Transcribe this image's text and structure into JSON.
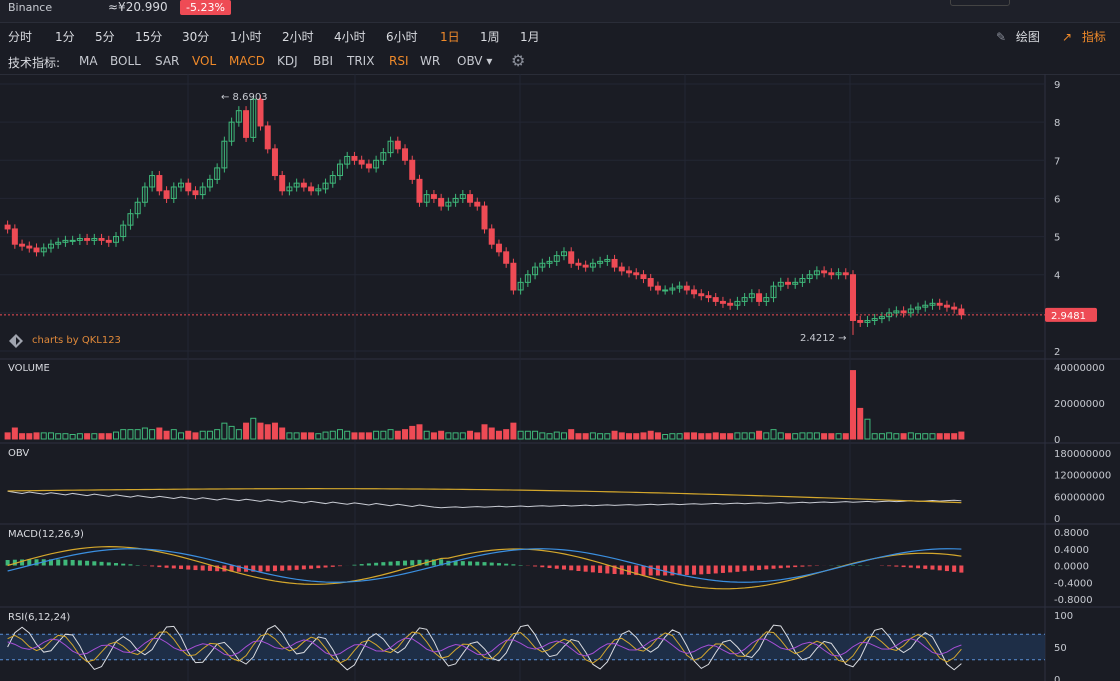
{
  "header": {
    "exchange": "Binance",
    "price": "≈¥20.990",
    "change": "-5.23%"
  },
  "timeframes": [
    "分时",
    "1分",
    "5分",
    "15分",
    "30分",
    "1小时",
    "2小时",
    "4小时",
    "6小时",
    "1日",
    "1周",
    "1月"
  ],
  "active_timeframe": "1日",
  "tools": {
    "draw": "绘图",
    "indicators": "指标"
  },
  "indicator_bar": {
    "label": "技术指标:",
    "items": [
      "MA",
      "BOLL",
      "SAR",
      "VOL",
      "MACD",
      "KDJ",
      "BBI",
      "TRIX",
      "RSI",
      "WR",
      "OBV ▾"
    ],
    "active": [
      "VOL",
      "MACD",
      "RSI"
    ]
  },
  "watermark": "charts by QKL123",
  "colors": {
    "up": "#3fb87a",
    "down": "#ee4b55",
    "accent": "#f08a2a",
    "bg": "#1a1c24"
  },
  "chart_data": [
    {
      "type": "candlestick",
      "title": "",
      "ylim": [
        2,
        9
      ],
      "yticks": [
        "9",
        "8",
        "7",
        "6",
        "5",
        "4",
        "3",
        "2"
      ],
      "last_price_label": "2.9481",
      "max_annotation": "8.6903",
      "min_annotation": "2.4212",
      "close_series": [
        5.2,
        4.8,
        4.75,
        4.7,
        4.6,
        4.7,
        4.8,
        4.85,
        4.9,
        4.9,
        4.95,
        4.9,
        4.95,
        4.9,
        4.85,
        5.0,
        5.3,
        5.6,
        5.9,
        6.3,
        6.6,
        6.2,
        6.0,
        6.3,
        6.4,
        6.2,
        6.1,
        6.3,
        6.5,
        6.8,
        7.5,
        8.0,
        8.3,
        7.6,
        8.6,
        7.9,
        7.3,
        6.6,
        6.2,
        6.3,
        6.4,
        6.3,
        6.2,
        6.25,
        6.4,
        6.6,
        6.9,
        7.1,
        7.0,
        6.9,
        6.8,
        7.0,
        7.2,
        7.5,
        7.3,
        7.0,
        6.5,
        5.9,
        6.1,
        6.0,
        5.8,
        5.9,
        6.0,
        6.1,
        5.9,
        5.8,
        5.2,
        4.8,
        4.6,
        4.3,
        3.6,
        3.8,
        4.0,
        4.2,
        4.3,
        4.35,
        4.5,
        4.6,
        4.3,
        4.25,
        4.2,
        4.3,
        4.35,
        4.4,
        4.2,
        4.1,
        4.05,
        4.0,
        3.9,
        3.7,
        3.6,
        3.6,
        3.65,
        3.7,
        3.6,
        3.5,
        3.45,
        3.4,
        3.3,
        3.25,
        3.2,
        3.3,
        3.4,
        3.5,
        3.3,
        3.4,
        3.7,
        3.8,
        3.75,
        3.8,
        3.9,
        4.0,
        4.1,
        4.05,
        4.0,
        4.05,
        4.0,
        2.8,
        2.75,
        2.8,
        2.85,
        2.9,
        3.0,
        3.05,
        3.0,
        3.1,
        3.15,
        3.2,
        3.25,
        3.2,
        3.15,
        3.1,
        2.95
      ],
      "high": 8.6903,
      "low": 2.4212
    },
    {
      "type": "bar",
      "title": "VOLUME",
      "ylim": [
        0,
        40000000
      ],
      "yticks": [
        "40000000",
        "20000000",
        "0"
      ],
      "peak_value": 38000000
    },
    {
      "type": "line",
      "title": "OBV",
      "ylim": [
        0,
        180000000
      ],
      "yticks": [
        "180000000",
        "120000000",
        "60000000",
        "0"
      ]
    },
    {
      "type": "line",
      "title": "MACD(12,26,9)",
      "ylim": [
        -0.8,
        0.8
      ],
      "yticks": [
        "0.8000",
        "0.4000",
        "0.0000",
        "-0.4000",
        "-0.8000"
      ]
    },
    {
      "type": "line",
      "title": "RSI(6,12,24)",
      "ylim": [
        0,
        100
      ],
      "yticks": [
        "100",
        "50",
        "0"
      ],
      "bands": [
        30,
        70
      ]
    }
  ]
}
